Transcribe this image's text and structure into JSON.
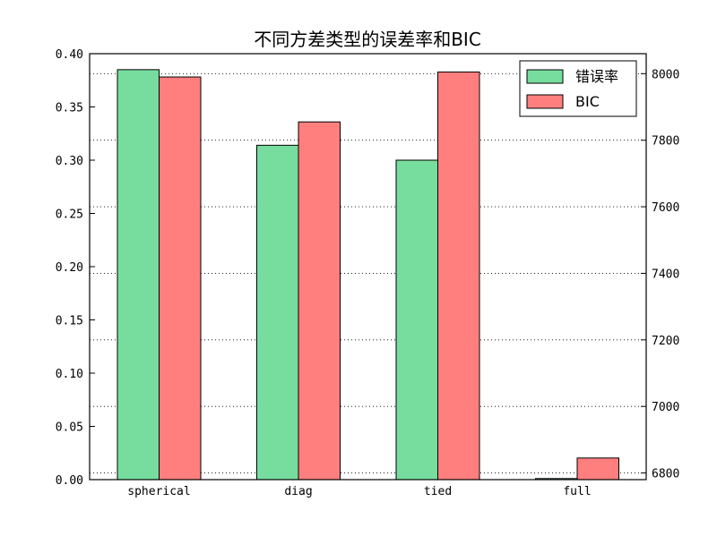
{
  "chart_data": {
    "type": "bar",
    "title": "不同方差类型的误差率和BIC",
    "categories": [
      "spherical",
      "diag",
      "tied",
      "full"
    ],
    "series": [
      {
        "name": "错误率",
        "axis": "left",
        "color": "#77dd9e",
        "values": [
          0.385,
          0.314,
          0.3,
          0.001
        ]
      },
      {
        "name": "BIC",
        "axis": "right",
        "color": "#ff7f7f",
        "values": [
          7990,
          7855,
          8005,
          6845
        ]
      }
    ],
    "y_left": {
      "lim": [
        0,
        0.4
      ],
      "ticks": [
        "0.00",
        "0.05",
        "0.10",
        "0.15",
        "0.20",
        "0.25",
        "0.30",
        "0.35",
        "0.40"
      ]
    },
    "y_right": {
      "lim": [
        6780,
        8060
      ],
      "ticks": [
        "6800",
        "7000",
        "7200",
        "7400",
        "7600",
        "7800",
        "8000"
      ]
    },
    "grid": "dotted, y (right axis)",
    "legend": "top-right"
  }
}
